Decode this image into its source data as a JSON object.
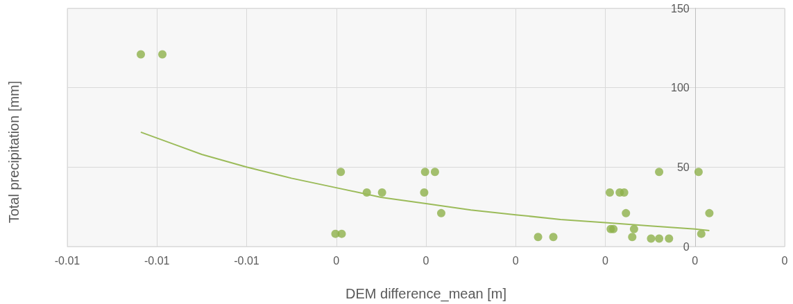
{
  "chart_data": {
    "type": "scatter",
    "xlabel": "DEM difference_mean [m]",
    "ylabel": "Total precipitation [mm]",
    "xlim": [
      -0.007,
      0.001
    ],
    "xticks": [
      {
        "value": -0.007,
        "label": "-0.01"
      },
      {
        "value": -0.006,
        "label": "-0.01"
      },
      {
        "value": -0.005,
        "label": "-0.01"
      },
      {
        "value": -0.004,
        "label": "0"
      },
      {
        "value": -0.003,
        "label": "0"
      },
      {
        "value": -0.002,
        "label": "0"
      },
      {
        "value": -0.001,
        "label": "0"
      },
      {
        "value": 0,
        "label": "0"
      },
      {
        "value": 0.001,
        "label": "0"
      }
    ],
    "ylim": [
      0,
      150
    ],
    "yticks": [
      0,
      50,
      100,
      150
    ],
    "grid": true,
    "series": [
      {
        "marker": "circle",
        "color": "#8db04a",
        "x": [
          -0.00618,
          -0.00594,
          -0.00401,
          -0.00394,
          -0.00395,
          -0.00366,
          -0.00349,
          -0.00302,
          -0.00301,
          -0.0029,
          -0.00283,
          -0.00175,
          -0.00158,
          -0.00095,
          -0.00094,
          -0.00091,
          -0.00084,
          -0.00079,
          -0.00077,
          -0.0007,
          -0.00068,
          -0.00049,
          -0.0004,
          -0.0004,
          -0.00029,
          4e-05,
          7e-05,
          0.00016
        ],
        "values": [
          121,
          121,
          8,
          8,
          47,
          34,
          34,
          34,
          47,
          47,
          21,
          6,
          6,
          34,
          11,
          11,
          34,
          34,
          21,
          6,
          11,
          5,
          47,
          5,
          5,
          47,
          8,
          21
        ]
      },
      {
        "type": "line",
        "marker": "none",
        "color": "#9bbb59",
        "x": [
          -0.00618,
          -0.0055,
          -0.005,
          -0.0045,
          -0.004,
          -0.0035,
          -0.003,
          -0.0025,
          -0.002,
          -0.0015,
          -0.001,
          -0.0005,
          0,
          0.00016
        ],
        "values": [
          72,
          58,
          50,
          43,
          37,
          31,
          27,
          23,
          20,
          17,
          15,
          13,
          11,
          10
        ]
      }
    ]
  }
}
